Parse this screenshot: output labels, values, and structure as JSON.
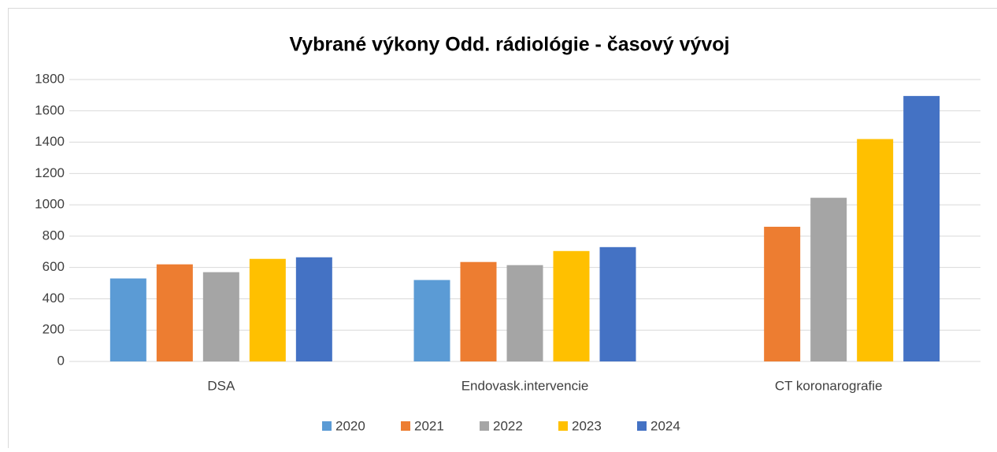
{
  "chart_data": {
    "type": "bar",
    "title": "Vybrané výkony Odd. rádiológie - časový vývoj",
    "categories": [
      "DSA",
      "Endovask.intervencie",
      "CT koronarografie"
    ],
    "series": [
      {
        "name": "2020",
        "color": "#5b9bd5",
        "values": [
          530,
          520,
          null
        ]
      },
      {
        "name": "2021",
        "color": "#ed7d31",
        "values": [
          620,
          635,
          860
        ]
      },
      {
        "name": "2022",
        "color": "#a5a5a5",
        "values": [
          570,
          615,
          1045
        ]
      },
      {
        "name": "2023",
        "color": "#ffc000",
        "values": [
          655,
          705,
          1420
        ]
      },
      {
        "name": "2024",
        "color": "#4472c4",
        "values": [
          665,
          730,
          1695
        ]
      }
    ],
    "ylim": [
      0,
      1800
    ],
    "yticks": [
      0,
      200,
      400,
      600,
      800,
      1000,
      1200,
      1400,
      1600,
      1800
    ],
    "grid": true,
    "legend": "bottom"
  }
}
